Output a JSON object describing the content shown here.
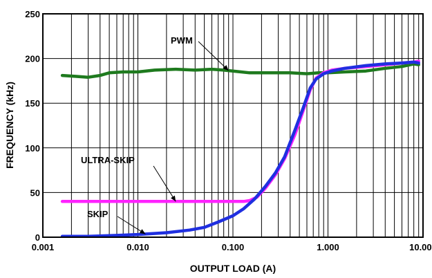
{
  "chart_data": {
    "type": "line",
    "xlabel": "OUTPUT LOAD (A)",
    "ylabel": "FREQUENCY (kHz)",
    "x_scale": "log",
    "xlim": [
      0.001,
      10
    ],
    "ylim": [
      0,
      250
    ],
    "grid": true,
    "x_ticks": [
      {
        "value": 0.001,
        "label": "0.001"
      },
      {
        "value": 0.01,
        "label": "0.010"
      },
      {
        "value": 0.1,
        "label": "0.100"
      },
      {
        "value": 1,
        "label": "1.000"
      },
      {
        "value": 10,
        "label": "10.000"
      }
    ],
    "y_ticks": [
      {
        "value": 0,
        "label": "0"
      },
      {
        "value": 50,
        "label": "50"
      },
      {
        "value": 100,
        "label": "100"
      },
      {
        "value": 150,
        "label": "150"
      },
      {
        "value": 200,
        "label": "200"
      },
      {
        "value": 250,
        "label": "250"
      }
    ],
    "series": [
      {
        "name": "PWM",
        "color": "#1e7a1e",
        "points": [
          [
            0.0016,
            181
          ],
          [
            0.0022,
            180
          ],
          [
            0.003,
            179
          ],
          [
            0.004,
            181
          ],
          [
            0.005,
            184
          ],
          [
            0.007,
            185
          ],
          [
            0.01,
            185
          ],
          [
            0.015,
            187
          ],
          [
            0.025,
            188
          ],
          [
            0.04,
            187
          ],
          [
            0.06,
            188
          ],
          [
            0.08,
            187
          ],
          [
            0.1,
            186
          ],
          [
            0.15,
            184
          ],
          [
            0.25,
            184
          ],
          [
            0.4,
            184
          ],
          [
            0.6,
            183
          ],
          [
            0.8,
            184
          ],
          [
            1.0,
            184
          ],
          [
            1.5,
            185
          ],
          [
            2.5,
            186
          ],
          [
            4,
            189
          ],
          [
            6,
            191
          ],
          [
            8,
            194
          ],
          [
            9,
            193
          ]
        ]
      },
      {
        "name": "ULTRA-SKIP",
        "color": "#ff22ff",
        "points": [
          [
            0.0016,
            40
          ],
          [
            0.003,
            40
          ],
          [
            0.01,
            40
          ],
          [
            0.03,
            40
          ],
          [
            0.06,
            40
          ],
          [
            0.1,
            40
          ],
          [
            0.13,
            40
          ],
          [
            0.15,
            41
          ],
          [
            0.18,
            45
          ],
          [
            0.22,
            55
          ],
          [
            0.28,
            70
          ],
          [
            0.35,
            88
          ],
          [
            0.45,
            115
          ],
          [
            0.55,
            142
          ],
          [
            0.65,
            165
          ],
          [
            0.75,
            178
          ],
          [
            0.9,
            184
          ],
          [
            1.1,
            187
          ],
          [
            1.5,
            189
          ],
          [
            2.5,
            191
          ],
          [
            4,
            193
          ],
          [
            6,
            195
          ],
          [
            8,
            196
          ],
          [
            9,
            197
          ]
        ]
      },
      {
        "name": "SKIP",
        "color": "#1f2fe0",
        "points": [
          [
            0.0016,
            1
          ],
          [
            0.003,
            1
          ],
          [
            0.006,
            2
          ],
          [
            0.01,
            3
          ],
          [
            0.02,
            5
          ],
          [
            0.035,
            8
          ],
          [
            0.05,
            11
          ],
          [
            0.07,
            17
          ],
          [
            0.1,
            24
          ],
          [
            0.13,
            32
          ],
          [
            0.17,
            43
          ],
          [
            0.22,
            57
          ],
          [
            0.28,
            72
          ],
          [
            0.35,
            90
          ],
          [
            0.45,
            120
          ],
          [
            0.55,
            145
          ],
          [
            0.65,
            167
          ],
          [
            0.75,
            177
          ],
          [
            0.9,
            183
          ],
          [
            1.1,
            186
          ],
          [
            1.5,
            189
          ],
          [
            2.5,
            192
          ],
          [
            4,
            194
          ],
          [
            6,
            195
          ],
          [
            8,
            196
          ],
          [
            9,
            195
          ]
        ]
      }
    ],
    "annotations": [
      {
        "text": "PWM",
        "series": "PWM",
        "at_x": 0.09
      },
      {
        "text": "ULTRA-SKIP",
        "series": "ULTRA-SKIP",
        "at_x": 0.025
      },
      {
        "text": "SKIP",
        "series": "SKIP",
        "at_x": 0.012
      }
    ]
  }
}
